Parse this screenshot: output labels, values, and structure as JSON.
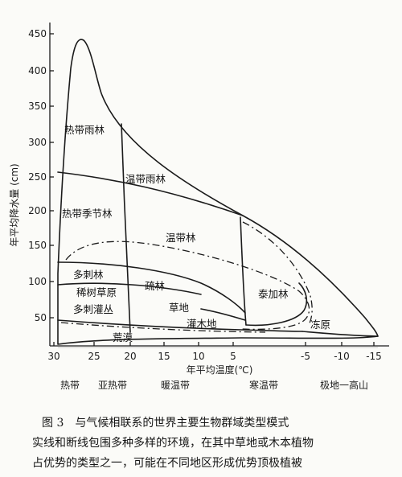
{
  "figure": {
    "y_axis_label": "年平均降水量 (cm)",
    "x_axis_label": "年平均温度(℃)",
    "y_ticks": [
      "50",
      "100",
      "150",
      "200",
      "250",
      "300",
      "350",
      "400",
      "450"
    ],
    "x_ticks": [
      "30",
      "25",
      "20",
      "15",
      "10",
      "5",
      "-5",
      "-10",
      "-15"
    ],
    "biomes": {
      "tropical_rainforest": "热带雨林",
      "temperate_rainforest": "温带雨林",
      "tropical_seasonal_forest": "热带季节林",
      "temperate_forest": "温带林",
      "thorn_forest": "多刺林",
      "savanna": "稀树草原",
      "thorn_scrub": "多刺灌丛",
      "woodland": "疏林",
      "grassland": "草地",
      "shrubland": "灌木地",
      "taiga": "泰加林",
      "tundra": "冻原",
      "desert": "荒漠"
    },
    "zones": {
      "tropical": "热带",
      "subtropical": "亚热带",
      "warm_temperate": "暖温带",
      "cold_temperate": "寒温带",
      "polar_alpine": "极地一高山"
    }
  },
  "caption": {
    "title": "图 3　与气候相联系的世界主要生物群域类型模式",
    "line1": "实线和断线包围多种多样的环境，在其中草地或木本植物",
    "line2": "占优势的类型之一，可能在不同地区形成优势顶极植被"
  },
  "colors": {
    "ink": "#1b1b1b",
    "paper": "#fbfbf8"
  }
}
